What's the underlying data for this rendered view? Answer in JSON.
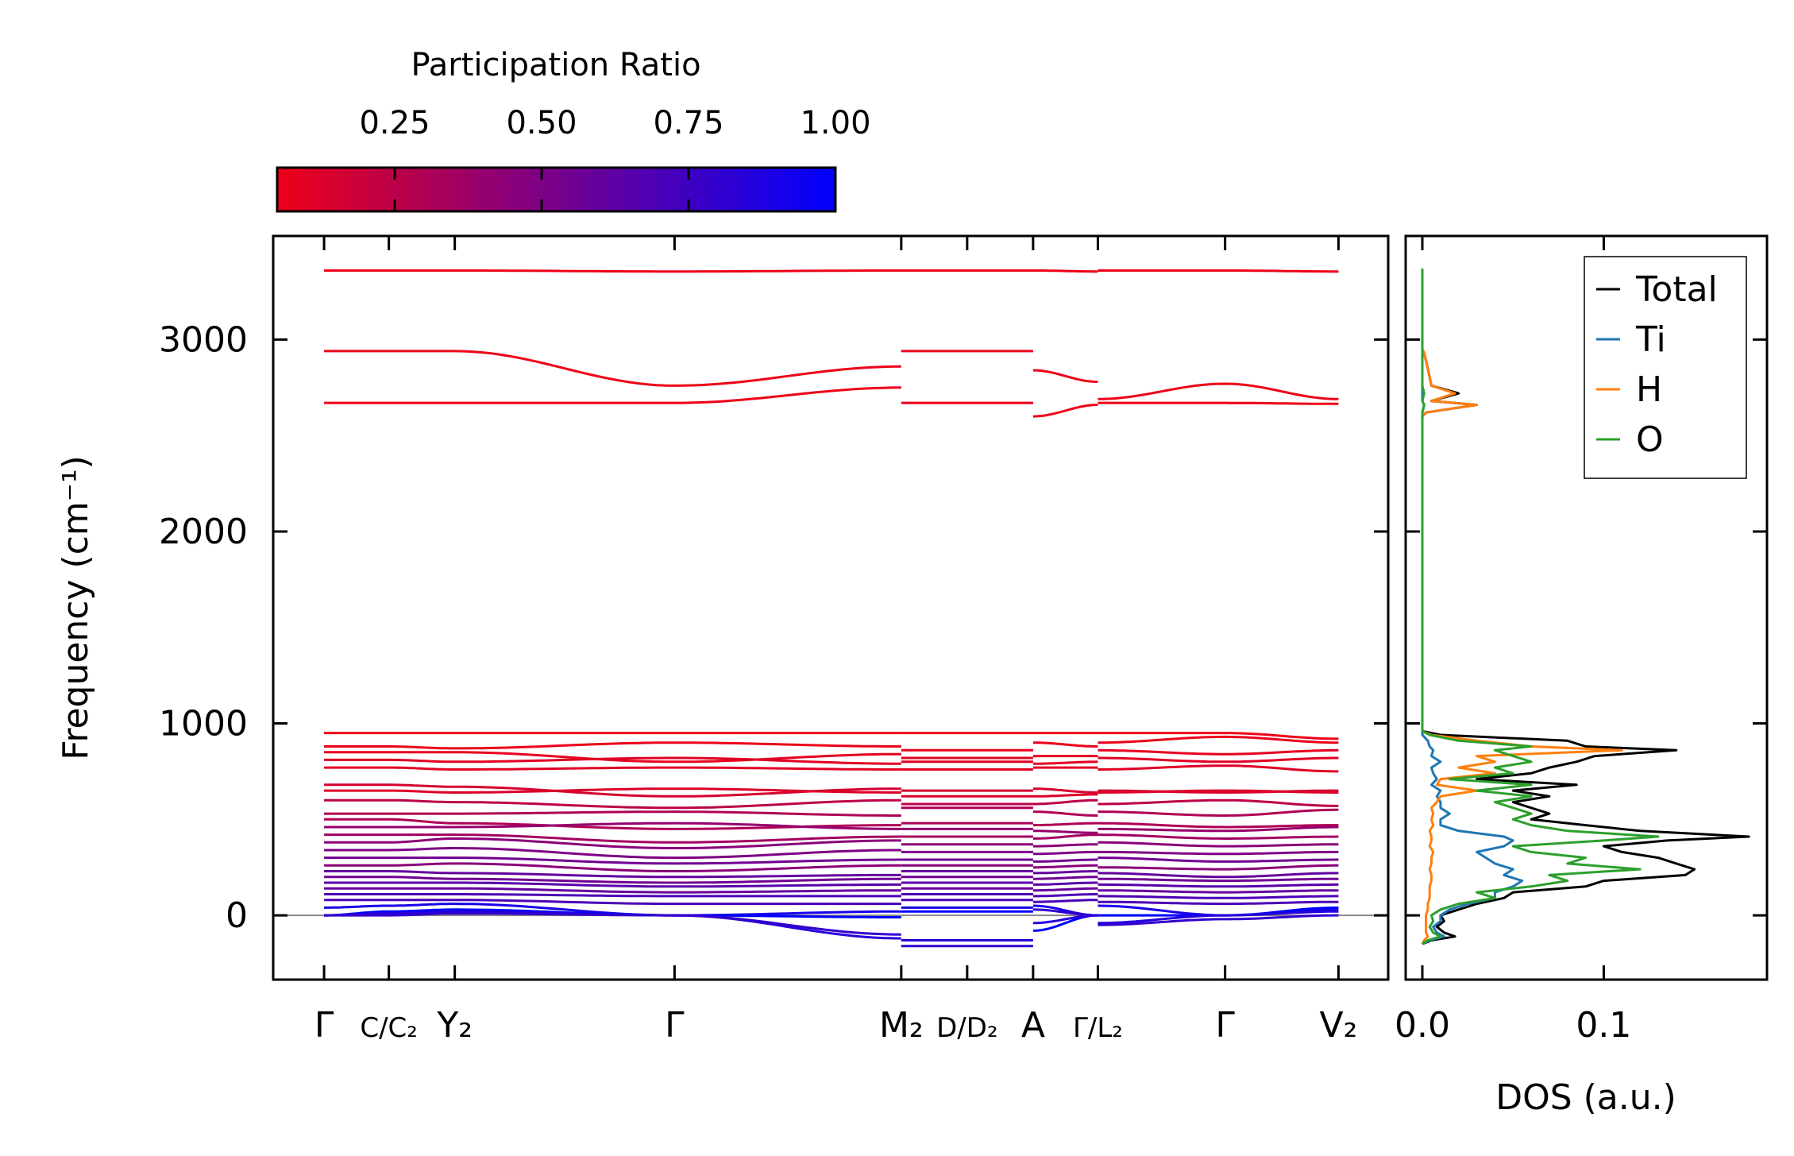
{
  "chart_data": [
    {
      "type": "line",
      "name": "phonon-band-structure",
      "ylabel": "Frequency (cm⁻¹)",
      "ylim": [
        -335,
        3540
      ],
      "yticks": [
        0,
        1000,
        2000,
        3000
      ],
      "xlim": [
        -0.44,
        9.2
      ],
      "kpoints": [
        0,
        0.56,
        1.13,
        3.03,
        4.99,
        5.56,
        6.13,
        6.69,
        7.79,
        8.77
      ],
      "klabels": [
        "Γ",
        "C/C₂",
        "Y₂",
        "Γ",
        "M₂",
        "D/D₂",
        "A",
        "Γ/L₂",
        "Γ",
        "V₂"
      ],
      "segments": [
        [
          0,
          4
        ],
        [
          4,
          6
        ],
        [
          6,
          7
        ],
        [
          7,
          9
        ]
      ],
      "zero_line": 0,
      "colorbar": {
        "label": "Participation Ratio",
        "range": [
          0.05,
          1.0
        ],
        "ticks": [
          0.25,
          0.5,
          0.75,
          1.0
        ],
        "tick_labels": [
          "0.25",
          "0.50",
          "0.75",
          "1.00"
        ],
        "low_color": "#ee0018",
        "high_color": "#0000ff"
      },
      "bands": [
        {
          "pr": 0.02,
          "f": [
            [
              3360,
              3360,
              3360,
              3355,
              3360
            ],
            [
              3360,
              3360,
              3360
            ],
            [
              3360,
              3355
            ],
            [
              3360,
              3360,
              3355
            ]
          ]
        },
        {
          "pr": 0.05,
          "f": [
            [
              2940,
              2940,
              2940,
              2760,
              2860
            ],
            [
              2940,
              2940,
              2940
            ],
            [
              2840,
              2780
            ],
            [
              2690,
              2770,
              2690
            ]
          ]
        },
        {
          "pr": 0.05,
          "f": [
            [
              2670,
              2670,
              2670,
              2670,
              2750
            ],
            [
              2670,
              2670,
              2670
            ],
            [
              2600,
              2660
            ],
            [
              2670,
              2670,
              2665
            ]
          ]
        },
        {
          "pr": 0.05,
          "f": [
            [
              950,
              950,
              950,
              950,
              950
            ],
            [
              950,
              950,
              950
            ],
            [
              950,
              950
            ],
            [
              950,
              950,
              920
            ]
          ]
        },
        {
          "pr": 0.06,
          "f": [
            [
              880,
              880,
              870,
              900,
              880
            ],
            [
              860,
              860,
              860
            ],
            [
              900,
              880
            ],
            [
              900,
              930,
              900
            ]
          ]
        },
        {
          "pr": 0.08,
          "f": [
            [
              850,
              850,
              850,
              800,
              840
            ],
            [
              820,
              820,
              820
            ],
            [
              830,
              830
            ],
            [
              860,
              840,
              860
            ]
          ]
        },
        {
          "pr": 0.1,
          "f": [
            [
              810,
              810,
              800,
              820,
              790
            ],
            [
              800,
              800,
              800
            ],
            [
              790,
              800
            ],
            [
              820,
              800,
              820
            ]
          ]
        },
        {
          "pr": 0.1,
          "f": [
            [
              770,
              770,
              760,
              770,
              760
            ],
            [
              760,
              760,
              760
            ],
            [
              770,
              770
            ],
            [
              760,
              780,
              750
            ]
          ]
        },
        {
          "pr": 0.15,
          "f": [
            [
              680,
              680,
              670,
              620,
              660
            ],
            [
              650,
              650,
              650
            ],
            [
              660,
              640
            ],
            [
              650,
              640,
              650
            ]
          ]
        },
        {
          "pr": 0.12,
          "f": [
            [
              650,
              650,
              640,
              660,
              640
            ],
            [
              620,
              620,
              620
            ],
            [
              620,
              630
            ],
            [
              640,
              650,
              640
            ]
          ]
        },
        {
          "pr": 0.25,
          "f": [
            [
              600,
              600,
              590,
              560,
              600
            ],
            [
              580,
              580,
              580
            ],
            [
              580,
              600
            ],
            [
              580,
              600,
              570
            ]
          ]
        },
        {
          "pr": 0.3,
          "f": [
            [
              530,
              530,
              530,
              540,
              520
            ],
            [
              560,
              560,
              560
            ],
            [
              540,
              520
            ],
            [
              540,
              520,
              550
            ]
          ]
        },
        {
          "pr": 0.3,
          "f": [
            [
              500,
              500,
              480,
              450,
              470
            ],
            [
              480,
              480,
              480
            ],
            [
              470,
              480
            ],
            [
              480,
              460,
              470
            ]
          ]
        },
        {
          "pr": 0.4,
          "f": [
            [
              460,
              460,
              460,
              480,
              450
            ],
            [
              450,
              450,
              450
            ],
            [
              440,
              430
            ],
            [
              450,
              440,
              460
            ]
          ]
        },
        {
          "pr": 0.35,
          "f": [
            [
              420,
              420,
              420,
              380,
              410
            ],
            [
              410,
              410,
              410
            ],
            [
              400,
              420
            ],
            [
              420,
              400,
              410
            ]
          ]
        },
        {
          "pr": 0.45,
          "f": [
            [
              380,
              380,
              400,
              350,
              390
            ],
            [
              370,
              370,
              370
            ],
            [
              360,
              370
            ],
            [
              380,
              360,
              370
            ]
          ]
        },
        {
          "pr": 0.5,
          "f": [
            [
              340,
              340,
              350,
              300,
              340
            ],
            [
              330,
              330,
              330
            ],
            [
              320,
              330
            ],
            [
              330,
              320,
              330
            ]
          ]
        },
        {
          "pr": 0.55,
          "f": [
            [
              300,
              300,
              300,
              270,
              290
            ],
            [
              290,
              290,
              290
            ],
            [
              280,
              290
            ],
            [
              300,
              280,
              290
            ]
          ]
        },
        {
          "pr": 0.45,
          "f": [
            [
              260,
              260,
              270,
              230,
              260
            ],
            [
              260,
              260,
              260
            ],
            [
              250,
              260
            ],
            [
              250,
              240,
              260
            ]
          ]
        },
        {
          "pr": 0.6,
          "f": [
            [
              230,
              230,
              220,
              200,
              210
            ],
            [
              230,
              230,
              230
            ],
            [
              220,
              230
            ],
            [
              220,
              200,
              220
            ]
          ]
        },
        {
          "pr": 0.55,
          "f": [
            [
              200,
              200,
              190,
              170,
              190
            ],
            [
              200,
              200,
              200
            ],
            [
              190,
              200
            ],
            [
              190,
              180,
              190
            ]
          ]
        },
        {
          "pr": 0.65,
          "f": [
            [
              170,
              170,
              170,
              150,
              160
            ],
            [
              170,
              170,
              170
            ],
            [
              160,
              170
            ],
            [
              160,
              150,
              160
            ]
          ]
        },
        {
          "pr": 0.6,
          "f": [
            [
              140,
              140,
              140,
              120,
              130
            ],
            [
              140,
              140,
              140
            ],
            [
              130,
              140
            ],
            [
              130,
              120,
              130
            ]
          ]
        },
        {
          "pr": 0.7,
          "f": [
            [
              110,
              110,
              110,
              100,
              100
            ],
            [
              110,
              110,
              110
            ],
            [
              100,
              110
            ],
            [
              100,
              90,
              100
            ]
          ]
        },
        {
          "pr": 0.7,
          "f": [
            [
              80,
              80,
              80,
              60,
              60
            ],
            [
              80,
              80,
              80
            ],
            [
              70,
              80
            ],
            [
              70,
              60,
              70
            ]
          ]
        },
        {
          "pr": 0.9,
          "f": [
            [
              40,
              50,
              60,
              0,
              20
            ],
            [
              40,
              40,
              40
            ],
            [
              50,
              0
            ],
            [
              50,
              0,
              30
            ]
          ]
        },
        {
          "pr": 1.0,
          "f": [
            [
              0,
              20,
              30,
              0,
              -10
            ],
            [
              20,
              20,
              20
            ],
            [
              -80,
              0
            ],
            [
              0,
              0,
              40
            ]
          ]
        },
        {
          "pr": 0.85,
          "f": [
            [
              0,
              10,
              20,
              0,
              -120
            ],
            [
              -130,
              -130,
              -130
            ],
            [
              -40,
              0
            ],
            [
              -40,
              0,
              20
            ]
          ]
        },
        {
          "pr": 0.8,
          "f": [
            [
              0,
              0,
              10,
              0,
              -100
            ],
            [
              -160,
              -160,
              -160
            ],
            [
              30,
              0
            ],
            [
              -50,
              -20,
              0
            ]
          ]
        }
      ]
    },
    {
      "type": "line",
      "name": "density-of-states",
      "xlabel": "DOS (a.u.)",
      "xlim": [
        -0.0092,
        0.19
      ],
      "xticks": [
        0.0,
        0.1
      ],
      "xtick_labels": [
        "0.0",
        "0.1"
      ],
      "ylim": [
        -335,
        3540
      ],
      "legend_position": "top-right",
      "frequency": [
        -150,
        -130,
        -110,
        -90,
        -60,
        -30,
        0,
        30,
        60,
        90,
        120,
        150,
        180,
        210,
        240,
        270,
        300,
        330,
        360,
        390,
        410,
        440,
        470,
        500,
        530,
        560,
        590,
        620,
        650,
        680,
        710,
        740,
        770,
        800,
        830,
        860,
        880,
        910,
        940,
        960,
        2600,
        2620,
        2660,
        2680,
        2720,
        2760,
        2850,
        2930,
        2950,
        3370
      ],
      "series": [
        {
          "name": "Total",
          "color": "#000000",
          "values": [
            0,
            0.005,
            0.018,
            0.012,
            0.008,
            0.012,
            0.01,
            0.02,
            0.03,
            0.045,
            0.05,
            0.09,
            0.1,
            0.145,
            0.15,
            0.14,
            0.13,
            0.11,
            0.1,
            0.135,
            0.18,
            0.12,
            0.09,
            0.06,
            0.07,
            0.06,
            0.05,
            0.07,
            0.05,
            0.085,
            0.03,
            0.06,
            0.07,
            0.085,
            0.095,
            0.14,
            0.09,
            0.08,
            0.01,
            0,
            0,
            0.002,
            0.03,
            0.005,
            0.02,
            0.005,
            0.003,
            0.001,
            0,
            0
          ]
        },
        {
          "name": "Ti",
          "color": "#1f77b4",
          "values": [
            0,
            0.004,
            0.012,
            0.008,
            0.006,
            0.01,
            0.01,
            0.015,
            0.025,
            0.04,
            0.04,
            0.05,
            0.055,
            0.045,
            0.05,
            0.04,
            0.035,
            0.03,
            0.045,
            0.05,
            0.045,
            0.02,
            0.01,
            0.01,
            0.015,
            0.01,
            0.01,
            0.008,
            0.01,
            0.005,
            0.008,
            0.006,
            0.005,
            0.01,
            0.005,
            0.006,
            0.004,
            0.003,
            0,
            0,
            0,
            0,
            0.001,
            0,
            0,
            0,
            0,
            0,
            0,
            0
          ]
        },
        {
          "name": "H",
          "color": "#ff7f0e",
          "values": [
            0,
            0.001,
            0.003,
            0.002,
            0.002,
            0.002,
            0.002,
            0.003,
            0.003,
            0.004,
            0.004,
            0.004,
            0.005,
            0.005,
            0.004,
            0.005,
            0.005,
            0.006,
            0.004,
            0.005,
            0.005,
            0.004,
            0.006,
            0.005,
            0.006,
            0.005,
            0.008,
            0.01,
            0.03,
            0.008,
            0.01,
            0.04,
            0.02,
            0.04,
            0.03,
            0.11,
            0.06,
            0.03,
            0.005,
            0,
            0,
            0.002,
            0.03,
            0.005,
            0.018,
            0.005,
            0.003,
            0.001,
            0,
            0
          ]
        },
        {
          "name": "O",
          "color": "#2ca02c",
          "values": [
            0,
            0.003,
            0.01,
            0.006,
            0.004,
            0.006,
            0.005,
            0.01,
            0.02,
            0.04,
            0.03,
            0.06,
            0.08,
            0.07,
            0.12,
            0.08,
            0.09,
            0.06,
            0.05,
            0.1,
            0.13,
            0.08,
            0.06,
            0.05,
            0.06,
            0.05,
            0.04,
            0.06,
            0.03,
            0.06,
            0.015,
            0.05,
            0.04,
            0.06,
            0.05,
            0.04,
            0.06,
            0.02,
            0.004,
            0,
            0,
            0,
            0.001,
            0,
            0.001,
            0,
            0,
            0,
            0,
            0
          ]
        }
      ]
    }
  ]
}
